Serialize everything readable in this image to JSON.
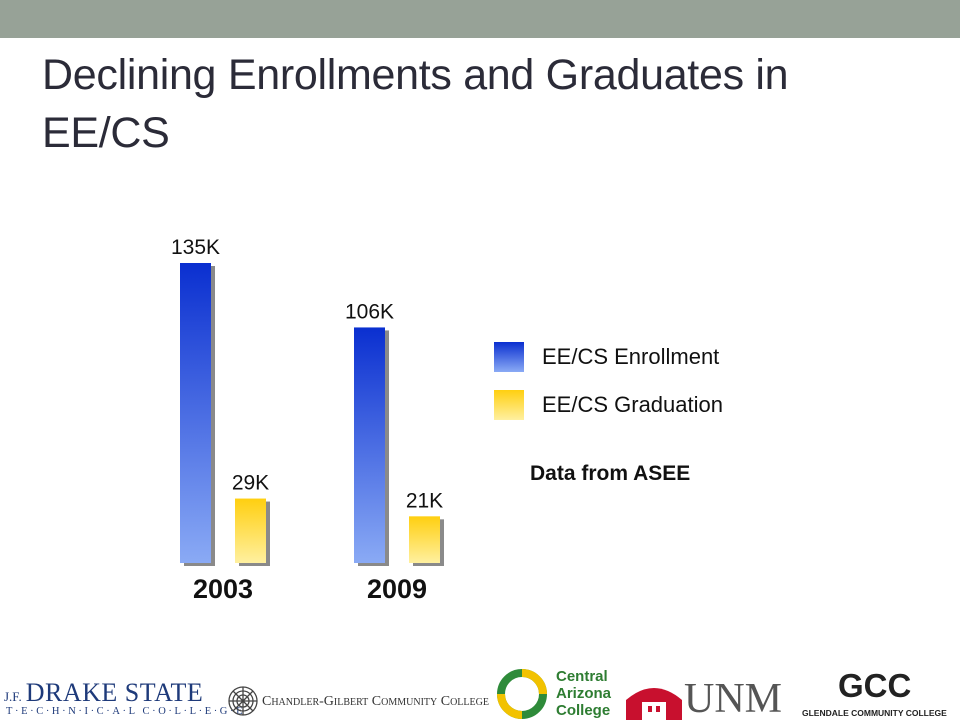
{
  "slide": {
    "title": "Declining Enrollments and Graduates in EE/CS",
    "accent_band_color": "#97a297"
  },
  "chart_data": {
    "type": "bar",
    "categories": [
      "2003",
      "2009"
    ],
    "series": [
      {
        "name": "EE/CS Enrollment",
        "values": [
          135,
          106
        ],
        "labels": [
          "135K",
          "106K"
        ],
        "color_top": "#0a2fd0",
        "color_bottom": "#8aaaf5"
      },
      {
        "name": "EE/CS Graduation",
        "values": [
          29,
          21
        ],
        "labels": [
          "29K",
          "21K"
        ],
        "color_top": "#ffcf10",
        "color_bottom": "#fff0a0"
      }
    ],
    "value_unit": "K",
    "annotation": "Data from ASEE",
    "legend_position": "right",
    "grid": false,
    "ylim": [
      0,
      140
    ]
  },
  "footer": {
    "logos": [
      {
        "icon": "drake-state-logo",
        "line1_prefix": "J.F.",
        "line1_main": "DRAKE STATE",
        "line2": "T·E·C·H·N·I·C·A·L C·O·L·L·E·G·E"
      },
      {
        "icon": "chandler-gilbert-logo",
        "text": "Chandler-Gilbert Community College"
      },
      {
        "icon": "central-arizona-logo",
        "lines": [
          "Central",
          "Arizona",
          "College"
        ]
      },
      {
        "icon": "unm-logo",
        "text": "UNM"
      },
      {
        "icon": "glendale-logo",
        "text": "GCC",
        "subtext": "GLENDALE COMMUNITY COLLEGE"
      }
    ]
  }
}
